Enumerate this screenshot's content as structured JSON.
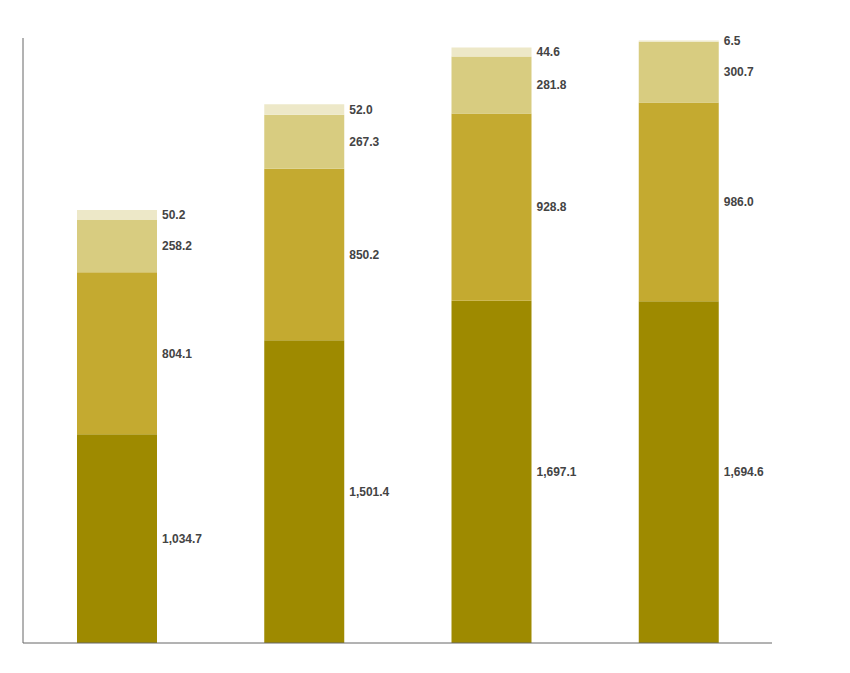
{
  "chart_data": {
    "type": "bar",
    "stacked": true,
    "data_labels": true,
    "tick_labels": false,
    "categories": [
      null,
      null,
      null,
      null
    ],
    "ylim": [
      0,
      3000
    ],
    "series": [
      {
        "color": "#9E8A00",
        "values": [
          1034.7,
          1501.4,
          1697.1,
          1694.6
        ],
        "value_labels": [
          "1,034.7",
          "1,501.4",
          "1,697.1",
          "1,694.6"
        ]
      },
      {
        "color": "#C4AA30",
        "values": [
          804.1,
          850.2,
          928.8,
          986.0
        ],
        "value_labels": [
          "804.1",
          "850.2",
          "928.8",
          "986.0"
        ]
      },
      {
        "color": "#D8CC80",
        "values": [
          258.2,
          267.3,
          281.8,
          300.7
        ],
        "value_labels": [
          "258.2",
          "267.3",
          "281.8",
          "300.7"
        ]
      },
      {
        "color": "#EDE8C8",
        "values": [
          50.2,
          52.0,
          44.6,
          6.5
        ],
        "value_labels": [
          "50.2",
          "52.0",
          "44.6",
          "6.5"
        ]
      }
    ]
  }
}
